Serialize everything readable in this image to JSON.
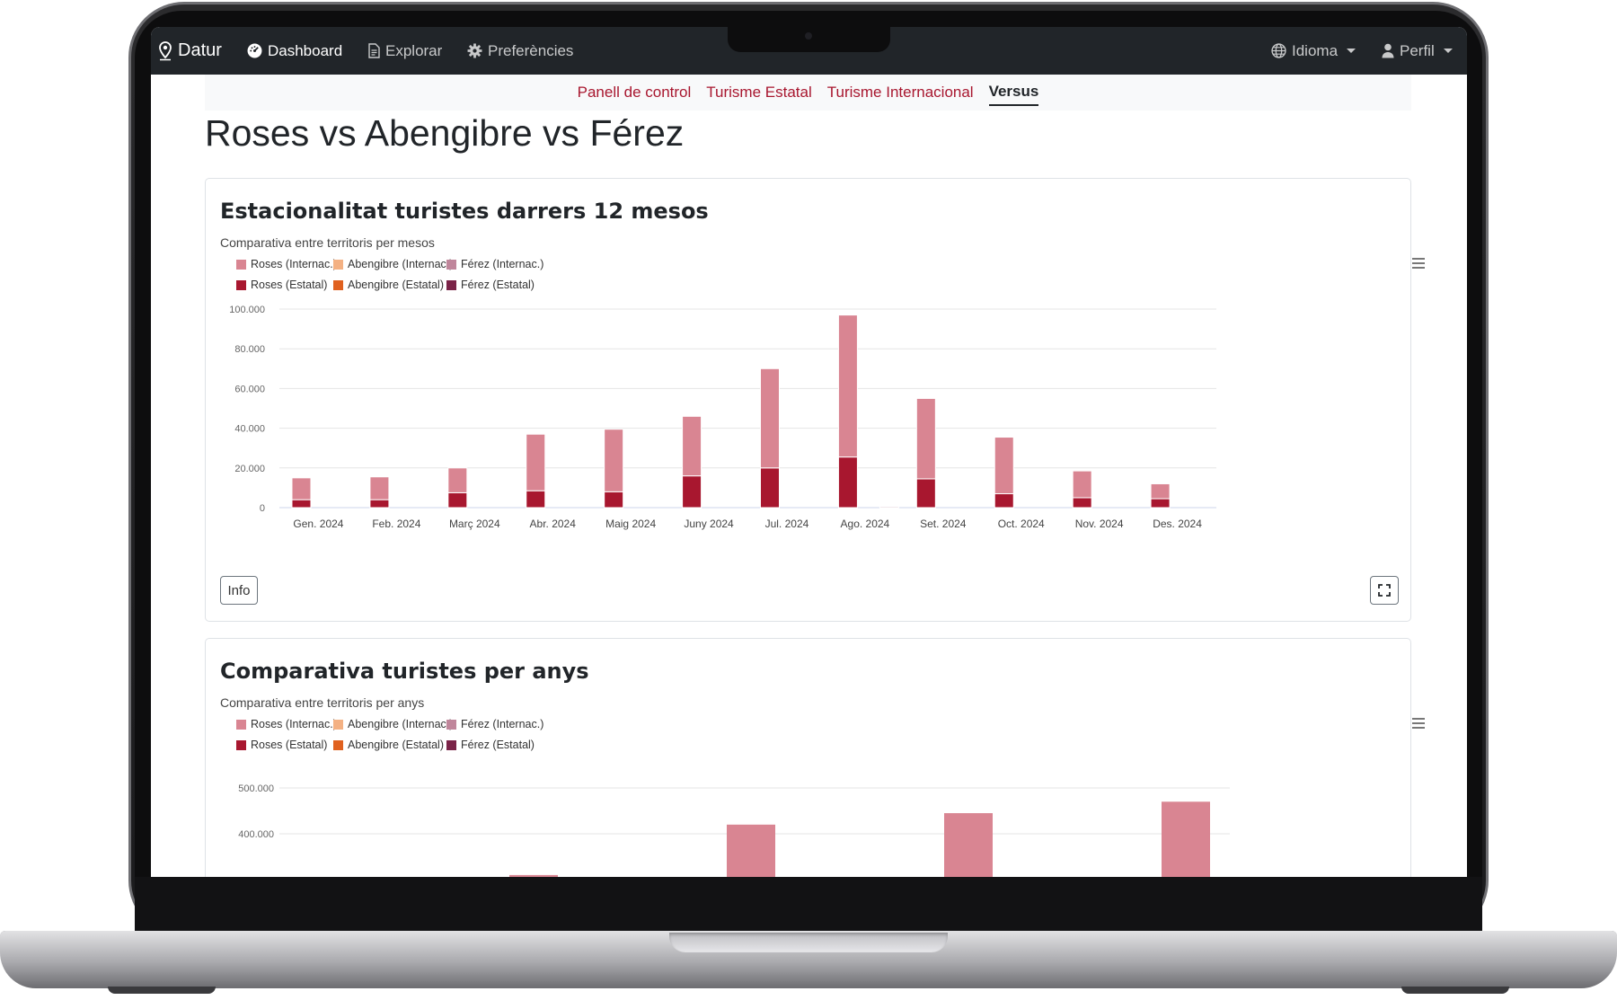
{
  "navbar": {
    "brand": "Datur",
    "items": [
      {
        "label": "Dashboard"
      },
      {
        "label": "Explorar"
      },
      {
        "label": "Preferències"
      }
    ],
    "language": "Idioma",
    "profile": "Perfil"
  },
  "subnav": {
    "tabs": [
      {
        "label": "Panell de control"
      },
      {
        "label": "Turisme Estatal"
      },
      {
        "label": "Turisme Internacional"
      },
      {
        "label": "Versus"
      }
    ],
    "active": "Versus"
  },
  "page": {
    "title": "Roses vs Abengibre vs Férez"
  },
  "legend_items": [
    {
      "label": "Roses (Internac.)",
      "color": "#d98592"
    },
    {
      "label": "Abengibre (Internac.)",
      "color": "#f4b183"
    },
    {
      "label": "Férez (Internac.)",
      "color": "#c0869b"
    },
    {
      "label": "Roses (Estatal)",
      "color": "#a8172f"
    },
    {
      "label": "Abengibre (Estatal)",
      "color": "#e0611f"
    },
    {
      "label": "Férez (Estatal)",
      "color": "#7a2347"
    }
  ],
  "card1": {
    "title": "Estacionalitat turistes darrers 12 mesos",
    "subtitle": "Comparativa entre territoris per mesos",
    "info_label": "Info"
  },
  "card2": {
    "title": "Comparativa turistes per anys",
    "subtitle": "Comparativa entre territoris per anys"
  },
  "chart_data": [
    {
      "type": "bar",
      "stacked": true,
      "title": "Estacionalitat turistes darrers 12 mesos",
      "subtitle": "Comparativa entre territoris per mesos",
      "categories": [
        "Gen. 2024",
        "Feb. 2024",
        "Març 2024",
        "Abr. 2024",
        "Maig 2024",
        "Juny 2024",
        "Jul. 2024",
        "Ago. 2024",
        "Set. 2024",
        "Oct. 2024",
        "Nov. 2024",
        "Des. 2024"
      ],
      "ylim": [
        0,
        100000
      ],
      "yticks": [
        0,
        20000,
        40000,
        60000,
        80000,
        100000
      ],
      "ytick_labels": [
        "0",
        "20.000",
        "40.000",
        "60.000",
        "80.000",
        "100.000"
      ],
      "series": [
        {
          "name": "Roses (Estatal)",
          "stack": "Roses",
          "values": [
            4000,
            4000,
            7500,
            8500,
            8000,
            16000,
            20000,
            25500,
            14500,
            7000,
            5000,
            4500
          ]
        },
        {
          "name": "Roses (Internac.)",
          "stack": "Roses",
          "values": [
            11000,
            11500,
            12500,
            28500,
            31500,
            30000,
            50000,
            71500,
            40500,
            28500,
            13500,
            7500
          ]
        },
        {
          "name": "Abengibre (Estatal)",
          "stack": "Abengibre",
          "values": [
            0,
            0,
            0,
            0,
            0,
            0,
            0,
            0,
            0,
            0,
            0,
            0
          ]
        },
        {
          "name": "Abengibre (Internac.)",
          "stack": "Abengibre",
          "values": [
            0,
            0,
            0,
            0,
            0,
            0,
            0,
            0,
            0,
            0,
            0,
            0
          ]
        },
        {
          "name": "Férez (Estatal)",
          "stack": "Férez",
          "values": [
            0,
            0,
            0,
            0,
            0,
            0,
            0,
            500,
            0,
            0,
            0,
            0
          ]
        },
        {
          "name": "Férez (Internac.)",
          "stack": "Férez",
          "values": [
            0,
            0,
            0,
            0,
            0,
            0,
            0,
            0,
            0,
            0,
            0,
            0
          ]
        }
      ],
      "grid": true,
      "legend": "top-left"
    },
    {
      "type": "bar",
      "stacked": true,
      "title": "Comparativa turistes per anys",
      "subtitle": "Comparativa entre territoris per anys",
      "ytick_labels": [
        "500.000",
        "400.000"
      ],
      "yticks": [
        500000,
        400000
      ],
      "values_visible": [
        310000,
        420000,
        445000,
        470000
      ],
      "grid": true,
      "legend": "top-left"
    }
  ]
}
